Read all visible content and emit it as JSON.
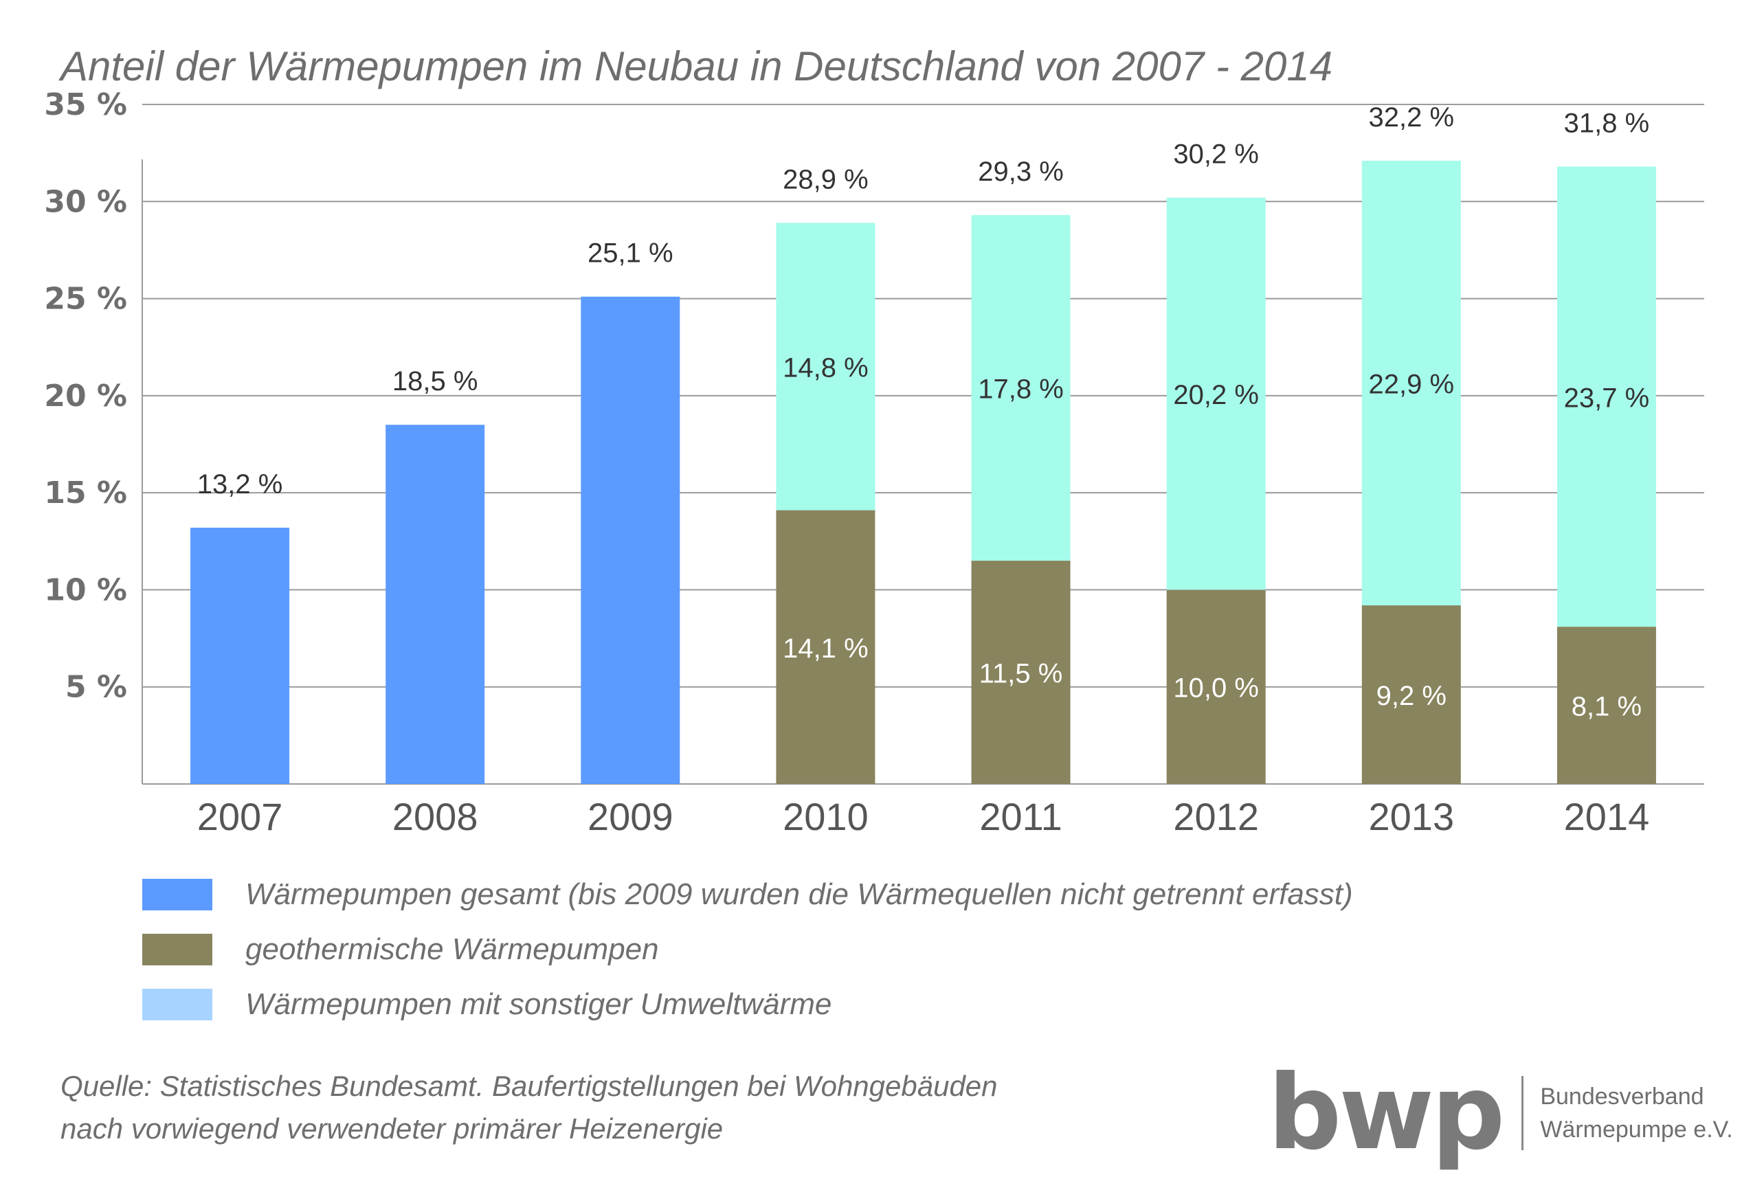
{
  "title": "Anteil der Wärmepumpen im Neubau in Deutschland von 2007 - 2014",
  "chart_data": {
    "type": "bar",
    "stacked": true,
    "categories": [
      "2007",
      "2008",
      "2009",
      "2010",
      "2011",
      "2012",
      "2013",
      "2014"
    ],
    "series": [
      {
        "name": "Wärmepumpen gesamt (bis 2009 wurden die Wärmequellen nicht getrennt erfasst)",
        "color": "#5b9bff",
        "values": [
          13.2,
          18.5,
          25.1,
          null,
          null,
          null,
          null,
          null
        ],
        "labels": [
          "13,2 %",
          "18,5 %",
          "25,1 %",
          null,
          null,
          null,
          null,
          null
        ]
      },
      {
        "name": "geothermische Wärmepumpen",
        "color": "#88845e",
        "values": [
          null,
          null,
          null,
          14.1,
          11.5,
          10.0,
          9.2,
          8.1
        ],
        "labels": [
          null,
          null,
          null,
          "14,1 %",
          "11,5 %",
          "10,0 %",
          "9,2 %",
          "8,1 %"
        ]
      },
      {
        "name": "Wärmepumpen mit sonstiger Umweltwärme",
        "color": "#a5fcea",
        "values": [
          null,
          null,
          null,
          14.8,
          17.8,
          20.2,
          22.9,
          23.7
        ],
        "labels": [
          null,
          null,
          null,
          "14,8 %",
          "17,8 %",
          "20,2 %",
          "22,9 %",
          "23,7 %"
        ]
      }
    ],
    "totals": [
      null,
      null,
      null,
      "28,9 %",
      "29,3 %",
      "30,2 %",
      "32,2 %",
      "31,8 %"
    ],
    "ylim": [
      0,
      35
    ],
    "yticks": [
      5,
      10,
      15,
      20,
      25,
      30,
      35
    ],
    "ytick_labels": [
      "5 %",
      "10 %",
      "15 %",
      "20 %",
      "25 %",
      "30 %",
      "35 %"
    ],
    "grid": true,
    "legend_position": "bottom-left"
  },
  "legend": [
    {
      "label": "Wärmepumpen gesamt (bis 2009 wurden die Wärmequellen nicht getrennt erfasst)",
      "color": "#5b9bff"
    },
    {
      "label": "geothermische Wärmepumpen",
      "color": "#88845e"
    },
    {
      "label": "Wärmepumpen mit sonstiger Umweltwärme",
      "color": "#a6d3ff"
    }
  ],
  "source": {
    "line1": "Quelle: Statistisches Bundesamt. Baufertigstellungen bei Wohngebäuden",
    "line2": "nach vorwiegend verwendeter primärer Heizenergie"
  },
  "logo": {
    "mark": "bwp",
    "line1": "Bundesverband",
    "line2": "Wärmepumpe e.V."
  }
}
